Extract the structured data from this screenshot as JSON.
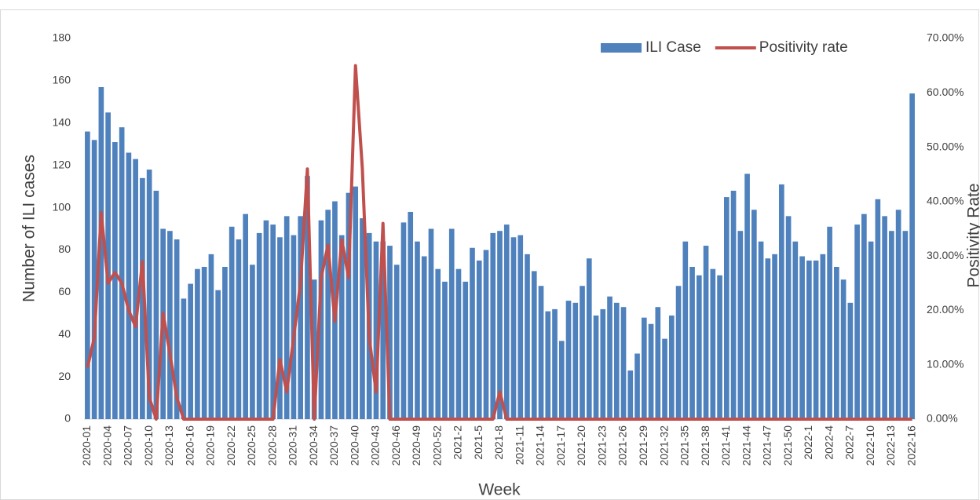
{
  "chart_data": {
    "type": "bar",
    "categories": [
      "2020-01",
      null,
      null,
      "2020-04",
      null,
      null,
      "2020-07",
      null,
      null,
      "2020-10",
      null,
      null,
      "2020-13",
      null,
      null,
      "2020-16",
      null,
      null,
      "2020-19",
      null,
      null,
      "2020-22",
      null,
      null,
      "2020-25",
      null,
      null,
      "2020-28",
      null,
      null,
      "2020-31",
      null,
      null,
      "2020-34",
      null,
      null,
      "2020-37",
      null,
      null,
      "2020-40",
      null,
      null,
      "2020-43",
      null,
      null,
      "2020-46",
      null,
      null,
      "2020-49",
      null,
      null,
      "2020-52",
      null,
      null,
      "2021-2",
      null,
      null,
      "2021-5",
      null,
      null,
      "2021-8",
      null,
      null,
      "2021-11",
      null,
      null,
      "2021-14",
      null,
      null,
      "2021-17",
      null,
      null,
      "2021-20",
      null,
      null,
      "2021-23",
      null,
      null,
      "2021-26",
      null,
      null,
      "2021-29",
      null,
      null,
      "2021-32",
      null,
      null,
      "2021-35",
      null,
      null,
      "2021-38",
      null,
      null,
      "2021-41",
      null,
      null,
      "2021-44",
      null,
      null,
      "2021-47",
      null,
      null,
      "2021-50",
      null,
      null,
      "2022-1",
      null,
      null,
      "2022-4",
      null,
      null,
      "2022-7",
      null,
      null,
      "2022-10",
      null,
      null,
      "2022-13",
      null,
      null,
      "2022-16"
    ],
    "series": [
      {
        "name": "ILI Case",
        "type": "bar",
        "color": "#4f81bd",
        "values": [
          136,
          132,
          157,
          145,
          131,
          138,
          126,
          123,
          114,
          118,
          108,
          90,
          89,
          85,
          57,
          64,
          71,
          72,
          78,
          61,
          72,
          91,
          85,
          97,
          73,
          88,
          94,
          92,
          86,
          96,
          87,
          96,
          115,
          66,
          94,
          99,
          103,
          87,
          107,
          110,
          95,
          88,
          84,
          84,
          82,
          73,
          93,
          98,
          84,
          77,
          90,
          71,
          65,
          90,
          71,
          65,
          81,
          75,
          80,
          88,
          89,
          92,
          86,
          87,
          78,
          70,
          63,
          51,
          52,
          37,
          56,
          55,
          63,
          76,
          49,
          52,
          58,
          55,
          53,
          23,
          31,
          48,
          45,
          53,
          38,
          49,
          63,
          84,
          72,
          68,
          82,
          71,
          68,
          105,
          108,
          89,
          116,
          99,
          84,
          76,
          78,
          111,
          96,
          84,
          77,
          75,
          75,
          78,
          91,
          72,
          66,
          55,
          92,
          97,
          84,
          104,
          96,
          89,
          99,
          89,
          154
        ]
      },
      {
        "name": "Positivity rate",
        "type": "line",
        "axis": "y2",
        "color": "#c0504d",
        "values": [
          9.5,
          15,
          38,
          25,
          27,
          25,
          20,
          17,
          29,
          4,
          0,
          19.5,
          12,
          4,
          0,
          0,
          0,
          0,
          0,
          0,
          0,
          0,
          0,
          0,
          0,
          0,
          0,
          0,
          11,
          5,
          15,
          25,
          46,
          0,
          26,
          32,
          18,
          33,
          26,
          65,
          46,
          15,
          5,
          36,
          0,
          0,
          0,
          0,
          0,
          0,
          0,
          0,
          0,
          0,
          0,
          0,
          0,
          0,
          0,
          0,
          5,
          0,
          0,
          0,
          0,
          0,
          0,
          0,
          0,
          0,
          0,
          0,
          0,
          0,
          0,
          0,
          0,
          0,
          0,
          0,
          0,
          0,
          0,
          0,
          0,
          0,
          0,
          0,
          0,
          0,
          0,
          0,
          0,
          0,
          0,
          0,
          0,
          0,
          0,
          0,
          0,
          0,
          0,
          0,
          0,
          0,
          0,
          0,
          0,
          0,
          0,
          0,
          0,
          0,
          0,
          0,
          0,
          0,
          0,
          0,
          0
        ]
      }
    ],
    "ylim": [
      0,
      180
    ],
    "yticks": [
      0,
      20,
      40,
      60,
      80,
      100,
      120,
      140,
      160,
      180
    ],
    "y2lim": [
      0,
      70
    ],
    "y2ticks": [
      {
        "value": 0,
        "label": "0.00%"
      },
      {
        "value": 10,
        "label": "10.00%"
      },
      {
        "value": 20,
        "label": "20.00%"
      },
      {
        "value": 30,
        "label": "30.00%"
      },
      {
        "value": 40,
        "label": "40.00%"
      },
      {
        "value": 50,
        "label": "50.00%"
      },
      {
        "value": 60,
        "label": "60.00%"
      },
      {
        "value": 70,
        "label": "70.00%"
      }
    ],
    "y_label": "Number of ILI cases",
    "y2_label": "Positivity Rate",
    "x_label": "Week",
    "legend": "top-right"
  }
}
